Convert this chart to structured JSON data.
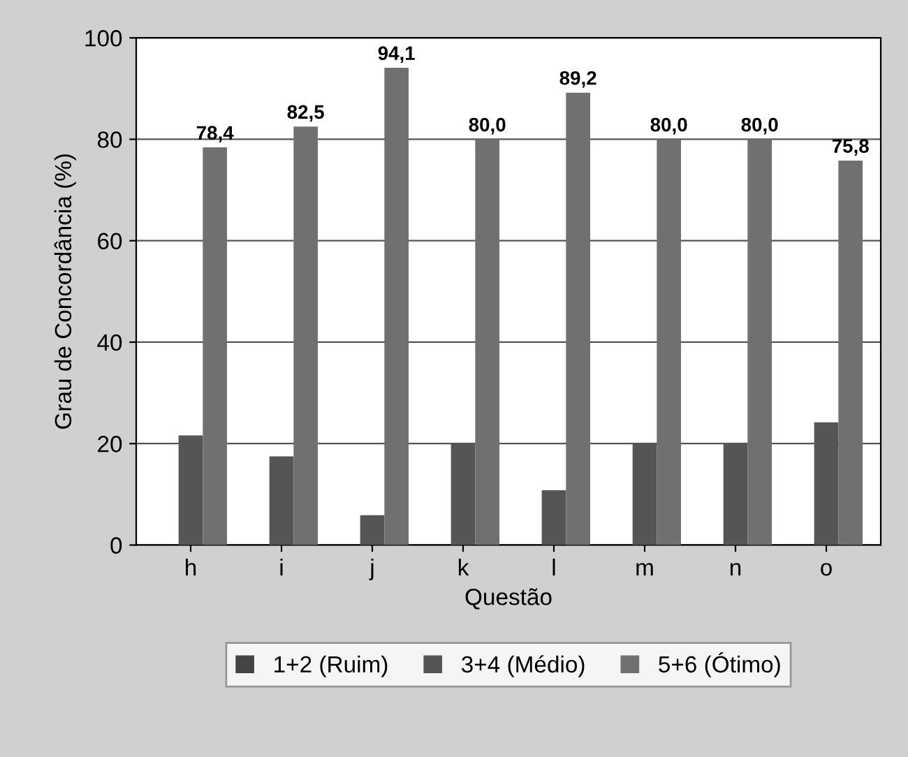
{
  "chart_data": {
    "type": "bar",
    "xlabel": "Questão",
    "ylabel": "Grau de Concordância (%)",
    "categories": [
      "h",
      "i",
      "j",
      "k",
      "l",
      "m",
      "n",
      "o"
    ],
    "series": [
      {
        "name": "1+2 (Ruim)",
        "color": "#444444",
        "values": [
          0,
          0,
          0,
          0,
          0,
          0,
          0,
          0
        ]
      },
      {
        "name": "3+4 (Médio)",
        "color": "#555555",
        "values": [
          21.6,
          17.5,
          5.9,
          20.0,
          10.8,
          20.0,
          20.0,
          24.2
        ]
      },
      {
        "name": "5+6 (Ótimo)",
        "color": "#707070",
        "values": [
          78.4,
          82.5,
          94.1,
          80.0,
          89.2,
          80.0,
          80.0,
          75.8
        ],
        "value_labels": [
          "78,4",
          "82,5",
          "94,1",
          "80,0",
          "89,2",
          "80,0",
          "80,0",
          "75,8"
        ]
      }
    ],
    "ylim": [
      0,
      100
    ],
    "yticks": [
      0,
      20,
      40,
      60,
      80,
      100
    ],
    "grid": "y",
    "legend": "bottom"
  }
}
